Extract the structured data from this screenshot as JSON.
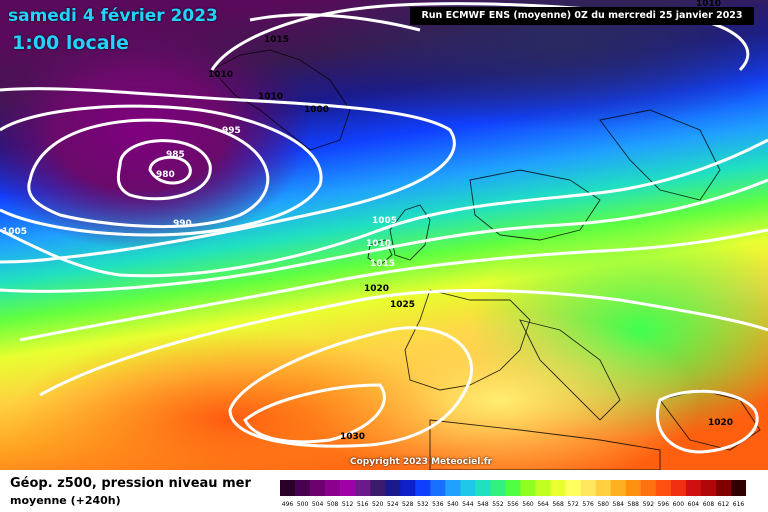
{
  "header": {
    "date": "samedi 4 février 2023",
    "time": "1:00 locale",
    "run_info": "Run ECMWF ENS (moyenne) 0Z du mercredi 25 janvier 2023"
  },
  "footer": {
    "title": "Géop. z500, pression niveau mer",
    "subtitle": "moyenne   (+240h)",
    "copyright": "Copyright 2023 Meteociel.fr"
  },
  "isobar_labels": [
    "1015",
    "1010",
    "1010",
    "1000",
    "995",
    "985",
    "980",
    "990",
    "1005",
    "1005",
    "1010",
    "1015",
    "1020",
    "1025",
    "1030",
    "1020",
    "1010"
  ],
  "scale": {
    "values": [
      "496",
      "500",
      "504",
      "508",
      "512",
      "516",
      "520",
      "524",
      "528",
      "532",
      "536",
      "540",
      "544",
      "548",
      "552",
      "556",
      "560",
      "564",
      "568",
      "572",
      "576",
      "580",
      "584",
      "588",
      "592",
      "596",
      "600",
      "604",
      "608",
      "612",
      "616"
    ],
    "colors": [
      "#2a0028",
      "#4a0050",
      "#6b006e",
      "#8a008c",
      "#a000a8",
      "#6a1a8a",
      "#3a1a6a",
      "#1a1a8c",
      "#1020c8",
      "#1040ff",
      "#1870ff",
      "#20a0ff",
      "#20c8e8",
      "#20e0c0",
      "#30f080",
      "#50ff40",
      "#90ff20",
      "#c0ff20",
      "#e8ff30",
      "#ffff60",
      "#ffe860",
      "#ffd040",
      "#ffb020",
      "#ff9010",
      "#ff7010",
      "#ff5010",
      "#f03010",
      "#d01010",
      "#b00808",
      "#800000",
      "#300000"
    ]
  },
  "colors": {
    "title_cyan": "#22d3ff",
    "isobar": "#ffffff"
  }
}
